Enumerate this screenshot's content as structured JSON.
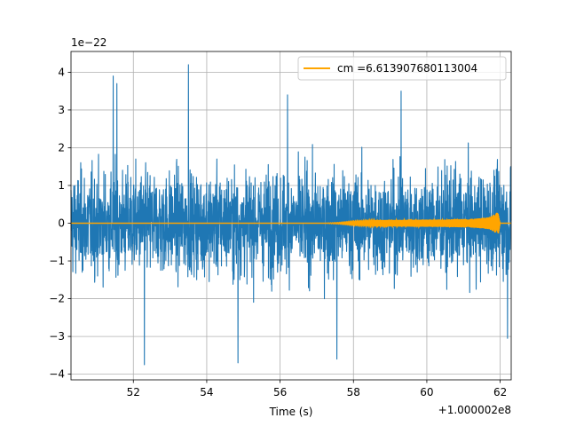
{
  "chart_data": {
    "type": "line",
    "title": "",
    "xlabel": "Time (s)",
    "ylabel": "",
    "x_offset_label": "+1.000002e8",
    "y_scale_label": "1e−22",
    "xlim": [
      50.3,
      62.3
    ],
    "ylim": [
      -4.15,
      4.55
    ],
    "xticks": [
      52,
      54,
      56,
      58,
      60,
      62
    ],
    "xtick_labels": [
      "52",
      "54",
      "56",
      "58",
      "60",
      "62"
    ],
    "yticks": [
      -4,
      -3,
      -2,
      -1,
      0,
      1,
      2,
      3,
      4
    ],
    "ytick_labels": [
      "−4",
      "−3",
      "−2",
      "−1",
      "0",
      "1",
      "2",
      "3",
      "4"
    ],
    "grid": true,
    "legend_position": "top-right",
    "series": [
      {
        "color": "#1f77b4",
        "note": "strain noise",
        "envelope_typical": 1.7,
        "peaks": [
          {
            "x": 51.45,
            "y": 3.9
          },
          {
            "x": 51.55,
            "y": 3.7
          },
          {
            "x": 53.5,
            "y": 4.2
          },
          {
            "x": 56.2,
            "y": 3.4
          },
          {
            "x": 59.3,
            "y": 3.5
          },
          {
            "x": 52.3,
            "y": -3.75
          },
          {
            "x": 54.85,
            "y": -3.7
          },
          {
            "x": 57.55,
            "y": -3.6
          },
          {
            "x": 62.2,
            "y": -3.05
          }
        ]
      },
      {
        "name": "cm =6.613907680113004",
        "color": "#ffa500",
        "note": "chirp template",
        "envelope": [
          {
            "x": 50.3,
            "a": 0.0
          },
          {
            "x": 57.2,
            "a": 0.0
          },
          {
            "x": 57.6,
            "a": 0.02
          },
          {
            "x": 58.0,
            "a": 0.06
          },
          {
            "x": 58.5,
            "a": 0.08
          },
          {
            "x": 59.5,
            "a": 0.09
          },
          {
            "x": 60.5,
            "a": 0.1
          },
          {
            "x": 61.3,
            "a": 0.12
          },
          {
            "x": 61.7,
            "a": 0.16
          },
          {
            "x": 61.95,
            "a": 0.3
          },
          {
            "x": 62.0,
            "a": 0.0
          },
          {
            "x": 62.3,
            "a": 0.0
          }
        ]
      }
    ]
  }
}
